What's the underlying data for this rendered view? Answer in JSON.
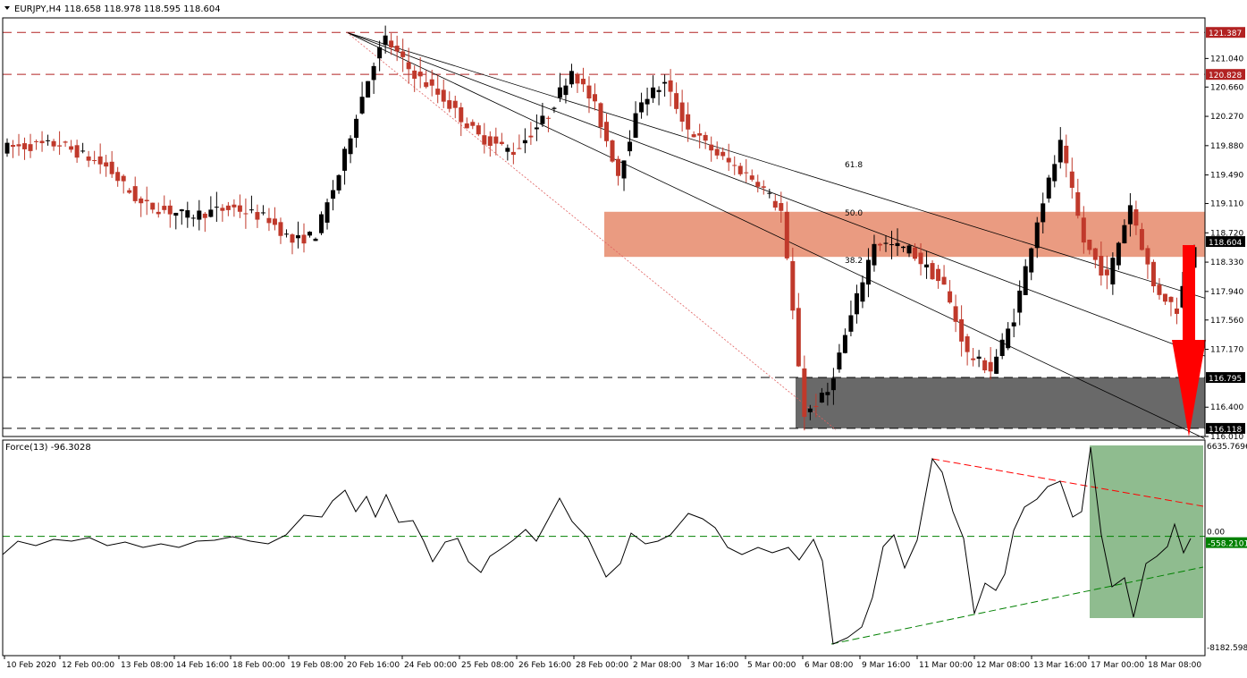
{
  "chart_data": [
    {
      "type": "candlestick",
      "title": "EURJPY,H4",
      "ohlc_header": "118.658 118.978 118.595 118.604",
      "current_price": 118.604,
      "current_price_label": "118.604",
      "ylim": [
        116.01,
        121.58
      ],
      "y_ticks": [
        "121.040",
        "120.660",
        "120.270",
        "119.880",
        "119.490",
        "119.110",
        "118.720",
        "118.330",
        "117.940",
        "117.560",
        "117.170",
        "116.400",
        "116.010"
      ],
      "y_tick_values": [
        121.04,
        120.66,
        120.27,
        119.88,
        119.49,
        119.11,
        118.72,
        118.33,
        117.94,
        117.56,
        117.17,
        116.4,
        116.01
      ],
      "x_ticks": [
        "10 Feb 2020",
        "12 Feb 00:00",
        "13 Feb 08:00",
        "14 Feb 16:00",
        "18 Feb 00:00",
        "19 Feb 08:00",
        "20 Feb 16:00",
        "24 Feb 00:00",
        "25 Feb 08:00",
        "26 Feb 16:00",
        "28 Feb 00:00",
        "2 Mar 08:00",
        "3 Mar 16:00",
        "5 Mar 00:00",
        "6 Mar 08:00",
        "9 Mar 16:00",
        "11 Mar 00:00",
        "12 Mar 08:00",
        "13 Mar 16:00",
        "17 Mar 00:00",
        "18 Mar 08:00"
      ],
      "horizontal_levels": [
        {
          "value": 121.387,
          "label": "121.387",
          "color": "#b22222"
        },
        {
          "value": 120.828,
          "label": "120.828",
          "color": "#b22222"
        },
        {
          "value": 116.795,
          "label": "116.795",
          "color": "#000000"
        },
        {
          "value": 116.118,
          "label": "116.118",
          "color": "#000000"
        }
      ],
      "zones": [
        {
          "name": "resistance",
          "from": 118.4,
          "to": 119.0,
          "color": "#e9967a"
        },
        {
          "name": "support",
          "from": 116.118,
          "to": 116.795,
          "color": "#696969"
        }
      ],
      "fib_labels": [
        "61.8",
        "50.0",
        "38.2"
      ],
      "colors": {
        "bull": "#000000",
        "bear": "#c0392b",
        "sell_arrow": "#ff0000"
      }
    },
    {
      "type": "line",
      "title": "Force(13) -96.3028",
      "ylim": [
        -8182.5988,
        6635.7696
      ],
      "y_ticks": [
        "6635.7696",
        "0.00",
        "-8182.5988"
      ],
      "current_value_label": "-558.2101",
      "zone_color": "#8fbc8f",
      "trend_colors": {
        "upper": "#ff0000",
        "lower": "#008000"
      }
    }
  ]
}
